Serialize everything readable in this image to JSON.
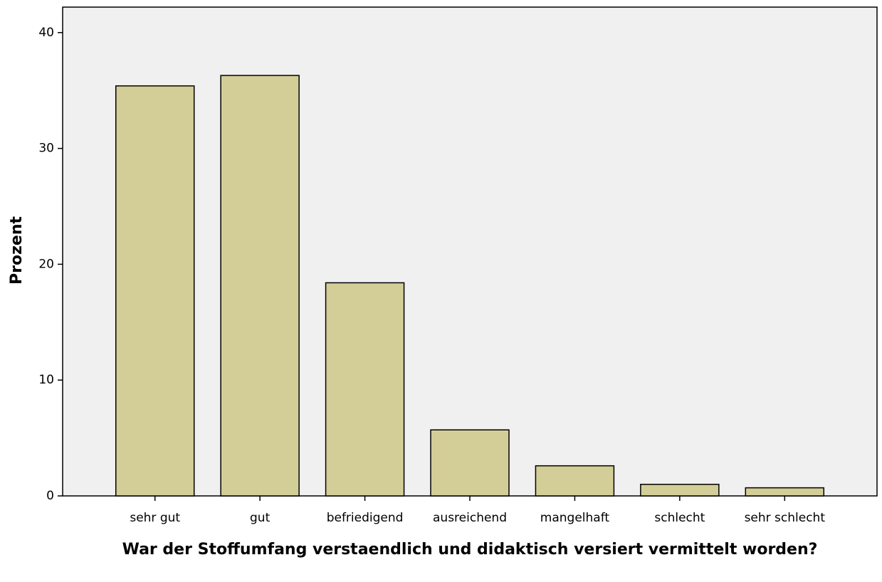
{
  "chart_data": {
    "type": "bar",
    "x_label": "War der Stoffumfang verstaendlich und didaktisch versiert vermittelt worden?",
    "y_label": "Prozent",
    "categories": [
      "sehr gut",
      "gut",
      "befriedigend",
      "ausreichend",
      "mangelhaft",
      "schlecht",
      "sehr schlecht"
    ],
    "values": [
      35.4,
      36.3,
      18.4,
      5.7,
      2.6,
      1.0,
      0.7
    ],
    "color": "#d3ce98",
    "ylim": [
      0,
      42.2
    ],
    "yticks": [
      0,
      10,
      20,
      30,
      40
    ],
    "grid": false
  }
}
